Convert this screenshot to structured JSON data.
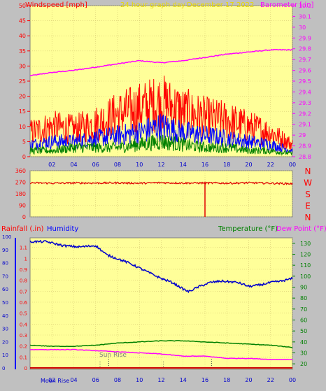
{
  "header": {
    "wind_label": "Windspeed [mph]",
    "title": "24 hour graph day",
    "date": "December 17 2022",
    "baro_label": "Barometer [.in]"
  },
  "lower_header": {
    "rain_label": "Rainfall (.in)",
    "humidity_label": "Humidity",
    "temp_label": "Temperature (°F)",
    "dew_label": "Dew Point (°F)"
  },
  "colors": {
    "plot_bg": "#ffff99",
    "frame_bg": "#c0c0c0",
    "wind_gust": "#ff0000",
    "wind_avg": "#0000ff",
    "wind_low": "#008000",
    "barometer": "#ff00ff",
    "direction": "#e00000",
    "humidity": "#0000cc",
    "temperature": "#008000",
    "dewpoint": "#ff00ff",
    "rain": "#cc0000",
    "title_yellow": "#e8d800"
  },
  "chart_data": [
    {
      "type": "line",
      "name": "wind-barometer",
      "x_ticks": [
        "02",
        "04",
        "06",
        "08",
        "10",
        "12",
        "14",
        "16",
        "18",
        "20",
        "22",
        "00"
      ],
      "left_axis": {
        "ticks": [
          "0",
          "5",
          "10",
          "15",
          "20",
          "25",
          "30",
          "35",
          "40",
          "45",
          "50"
        ],
        "ylim": [
          0,
          50
        ]
      },
      "right_axis": {
        "ticks": [
          "28.8",
          "28.9",
          "29",
          "29.1",
          "29.2",
          "29.3",
          "29.4",
          "29.5",
          "29.6",
          "29.7",
          "29.8",
          "29.9",
          "30",
          "30.1",
          "30.2"
        ],
        "ylim": [
          28.8,
          30.2
        ]
      },
      "series": [
        {
          "key": "gust",
          "axis": "left",
          "hours": [
            0,
            2,
            4,
            6,
            8,
            10,
            12,
            14,
            16,
            18,
            20,
            22,
            24
          ],
          "values": [
            8,
            10,
            9,
            11,
            14,
            16,
            18,
            15,
            13,
            12,
            10,
            8,
            4
          ]
        },
        {
          "key": "avg",
          "axis": "left",
          "hours": [
            0,
            2,
            4,
            6,
            8,
            10,
            12,
            14,
            16,
            18,
            20,
            22,
            24
          ],
          "values": [
            4,
            5,
            5,
            6,
            7,
            8,
            10,
            8,
            7,
            6,
            5,
            4,
            2
          ]
        },
        {
          "key": "low",
          "axis": "left",
          "hours": [
            0,
            2,
            4,
            6,
            8,
            10,
            12,
            14,
            16,
            18,
            20,
            22,
            24
          ],
          "values": [
            2,
            2,
            3,
            3,
            3,
            4,
            5,
            4,
            3,
            3,
            2,
            2,
            1
          ]
        },
        {
          "key": "barometer",
          "axis": "right",
          "hours": [
            0,
            2,
            4,
            6,
            8,
            10,
            12,
            14,
            16,
            18,
            20,
            22,
            24
          ],
          "values": [
            29.55,
            29.58,
            29.6,
            29.63,
            29.66,
            29.69,
            29.67,
            29.69,
            29.72,
            29.75,
            29.77,
            29.79,
            29.79
          ]
        }
      ]
    },
    {
      "type": "scatter",
      "name": "wind-direction",
      "left_axis": {
        "ticks": [
          "0",
          "90",
          "180",
          "270",
          "360"
        ],
        "ylim": [
          0,
          360
        ]
      },
      "compass": [
        "N",
        "W",
        "S",
        "E",
        "N"
      ],
      "series": [
        {
          "key": "direction",
          "hours": [
            0,
            2,
            4,
            6,
            8,
            10,
            12,
            14,
            16,
            18,
            20,
            22,
            24
          ],
          "values": [
            265,
            262,
            264,
            263,
            265,
            262,
            266,
            263,
            264,
            262,
            265,
            262,
            258
          ]
        }
      ]
    },
    {
      "type": "line",
      "name": "humidity-temperature",
      "x_ticks": [
        "02",
        "04",
        "06",
        "08",
        "10",
        "12",
        "14",
        "16",
        "18",
        "20",
        "22",
        "00"
      ],
      "rain_axis": {
        "ticks": [
          "0",
          "0.1",
          "0.2",
          "0.3",
          "0.4",
          "0.5",
          "0.6",
          "0.7",
          "0.8",
          "0.9",
          "1",
          "1.1"
        ],
        "ylim": [
          0,
          1.2
        ]
      },
      "humidity_axis": {
        "ticks": [
          "0",
          "10",
          "20",
          "30",
          "40",
          "50",
          "60",
          "70",
          "80",
          "90",
          "100"
        ],
        "ylim": [
          0,
          100
        ]
      },
      "temp_axis": {
        "ticks": [
          "20",
          "30",
          "40",
          "50",
          "60",
          "70",
          "80",
          "90",
          "100",
          "110",
          "120",
          "130"
        ],
        "ylim": [
          15,
          135
        ]
      },
      "annotations": {
        "sunrise": "Sun Rise",
        "moonrise": "Moon Rise"
      },
      "series": [
        {
          "key": "humidity",
          "axis": "humidity",
          "hours": [
            0,
            1.5,
            3,
            4.5,
            6,
            7,
            8,
            9,
            10,
            11,
            12,
            13,
            14,
            14.5,
            15.5,
            16.5,
            17.5,
            19,
            20,
            21,
            22,
            23,
            24
          ],
          "values": [
            96,
            96,
            93,
            92,
            93,
            86,
            83,
            80,
            76,
            72,
            68,
            65,
            60,
            58,
            62,
            65,
            66,
            65,
            62,
            63,
            65,
            66,
            68
          ]
        },
        {
          "key": "temperature",
          "axis": "temp",
          "hours": [
            0,
            2,
            4,
            6,
            8,
            10,
            12,
            14,
            16,
            18,
            20,
            22,
            24
          ],
          "values": [
            37,
            36,
            36,
            37,
            39,
            40,
            41,
            41,
            40,
            39,
            38,
            37,
            35
          ]
        },
        {
          "key": "dewpoint",
          "axis": "temp",
          "hours": [
            0,
            2,
            4,
            6,
            8,
            10,
            12,
            14,
            16,
            18,
            20,
            22,
            24
          ],
          "values": [
            33,
            33,
            33,
            32,
            31,
            30,
            29,
            27,
            27,
            25,
            25,
            24,
            24
          ]
        },
        {
          "key": "rain",
          "axis": "rain",
          "hours": [
            0,
            24
          ],
          "values": [
            0,
            0
          ]
        }
      ]
    }
  ]
}
